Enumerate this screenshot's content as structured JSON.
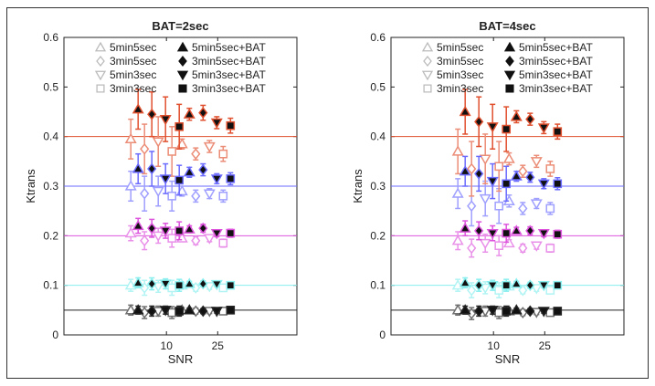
{
  "chart_data": [
    {
      "type": "scatter",
      "title": "BAT=2sec",
      "xlabel": "SNR",
      "ylabel": "Ktrans",
      "categories": [
        "10",
        "25"
      ],
      "ylim": [
        0,
        0.6
      ],
      "yticks": [
        "0",
        "0.1",
        "0.2",
        "0.3",
        "0.4",
        "0.5",
        "0.6"
      ],
      "reference_lines": [
        {
          "value": 0.4,
          "color": "#e0502e"
        },
        {
          "value": 0.3,
          "color": "#6b6bff"
        },
        {
          "value": 0.2,
          "color": "#dd55dd"
        },
        {
          "value": 0.1,
          "color": "#88eeee"
        },
        {
          "value": 0.05,
          "color": "#222222"
        }
      ],
      "series": [
        {
          "name": "5min5sec",
          "marker": "triangle-up",
          "filled": false,
          "values": {
            "10": {
              "0.05": [
                0.05,
                0.01
              ],
              "0.1": [
                0.1,
                0.012
              ],
              "0.2": [
                0.205,
                0.015
              ],
              "0.3": [
                0.3,
                0.03
              ],
              "0.4": [
                0.395,
                0.04
              ]
            },
            "25": {
              "0.05": [
                0.05,
                0.005
              ],
              "0.1": [
                0.1,
                0.006
              ],
              "0.2": [
                0.195,
                0.007
              ],
              "0.3": [
                0.29,
                0.01
              ],
              "0.4": [
                0.385,
                0.01
              ]
            }
          }
        },
        {
          "name": "3min5sec",
          "marker": "diamond",
          "filled": false,
          "values": {
            "10": {
              "0.05": [
                0.045,
                0.012
              ],
              "0.1": [
                0.095,
                0.015
              ],
              "0.2": [
                0.19,
                0.018
              ],
              "0.3": [
                0.285,
                0.035
              ],
              "0.4": [
                0.375,
                0.05
              ]
            },
            "25": {
              "0.05": [
                0.048,
                0.006
              ],
              "0.1": [
                0.095,
                0.007
              ],
              "0.2": [
                0.19,
                0.008
              ],
              "0.3": [
                0.28,
                0.012
              ],
              "0.4": [
                0.365,
                0.012
              ]
            }
          }
        },
        {
          "name": "5min3sec",
          "marker": "triangle-down",
          "filled": false,
          "values": {
            "10": {
              "0.05": [
                0.048,
                0.01
              ],
              "0.1": [
                0.098,
                0.012
              ],
              "0.2": [
                0.2,
                0.015
              ],
              "0.3": [
                0.29,
                0.03
              ],
              "0.4": [
                0.39,
                0.05
              ]
            },
            "25": {
              "0.05": [
                0.048,
                0.005
              ],
              "0.1": [
                0.098,
                0.006
              ],
              "0.2": [
                0.195,
                0.007
              ],
              "0.3": [
                0.285,
                0.01
              ],
              "0.4": [
                0.38,
                0.012
              ]
            }
          }
        },
        {
          "name": "3min3sec",
          "marker": "square",
          "filled": false,
          "values": {
            "10": {
              "0.05": [
                0.045,
                0.012
              ],
              "0.1": [
                0.095,
                0.015
              ],
              "0.2": [
                0.195,
                0.018
              ],
              "0.3": [
                0.28,
                0.03
              ],
              "0.4": [
                0.37,
                0.05
              ]
            },
            "25": {
              "0.05": [
                0.048,
                0.006
              ],
              "0.1": [
                0.095,
                0.007
              ],
              "0.2": [
                0.185,
                0.008
              ],
              "0.3": [
                0.28,
                0.012
              ],
              "0.4": [
                0.365,
                0.015
              ]
            }
          }
        },
        {
          "name": "5min5sec+BAT",
          "marker": "triangle-up",
          "filled": true,
          "values": {
            "10": {
              "0.05": [
                0.05,
                0.008
              ],
              "0.1": [
                0.105,
                0.01
              ],
              "0.2": [
                0.22,
                0.015
              ],
              "0.3": [
                0.335,
                0.03
              ],
              "0.4": [
                0.455,
                0.04
              ]
            },
            "25": {
              "0.05": [
                0.05,
                0.004
              ],
              "0.1": [
                0.103,
                0.005
              ],
              "0.2": [
                0.213,
                0.007
              ],
              "0.3": [
                0.328,
                0.01
              ],
              "0.4": [
                0.445,
                0.012
              ]
            }
          }
        },
        {
          "name": "3min5sec+BAT",
          "marker": "diamond",
          "filled": true,
          "values": {
            "10": {
              "0.05": [
                0.048,
                0.01
              ],
              "0.1": [
                0.103,
                0.012
              ],
              "0.2": [
                0.215,
                0.018
              ],
              "0.3": [
                0.335,
                0.035
              ],
              "0.4": [
                0.445,
                0.045
              ]
            },
            "25": {
              "0.05": [
                0.048,
                0.005
              ],
              "0.1": [
                0.103,
                0.006
              ],
              "0.2": [
                0.215,
                0.008
              ],
              "0.3": [
                0.333,
                0.012
              ],
              "0.4": [
                0.448,
                0.015
              ]
            }
          }
        },
        {
          "name": "5min3sec+BAT",
          "marker": "triangle-down",
          "filled": true,
          "values": {
            "10": {
              "0.05": [
                0.05,
                0.008
              ],
              "0.1": [
                0.103,
                0.01
              ],
              "0.2": [
                0.21,
                0.015
              ],
              "0.3": [
                0.315,
                0.03
              ],
              "0.4": [
                0.435,
                0.045
              ]
            },
            "25": {
              "0.05": [
                0.048,
                0.004
              ],
              "0.1": [
                0.102,
                0.005
              ],
              "0.2": [
                0.205,
                0.007
              ],
              "0.3": [
                0.315,
                0.01
              ],
              "0.4": [
                0.428,
                0.012
              ]
            }
          }
        },
        {
          "name": "3min3sec+BAT",
          "marker": "square",
          "filled": true,
          "values": {
            "10": {
              "0.05": [
                0.048,
                0.01
              ],
              "0.1": [
                0.1,
                0.012
              ],
              "0.2": [
                0.21,
                0.018
              ],
              "0.3": [
                0.312,
                0.03
              ],
              "0.4": [
                0.42,
                0.045
              ]
            },
            "25": {
              "0.05": [
                0.05,
                0.005
              ],
              "0.1": [
                0.1,
                0.006
              ],
              "0.2": [
                0.205,
                0.008
              ],
              "0.3": [
                0.315,
                0.012
              ],
              "0.4": [
                0.422,
                0.015
              ]
            }
          }
        }
      ]
    },
    {
      "type": "scatter",
      "title": "BAT=4sec",
      "xlabel": "SNR",
      "ylabel": "Ktrans",
      "categories": [
        "10",
        "25"
      ],
      "ylim": [
        0,
        0.6
      ],
      "yticks": [
        "0",
        "0.1",
        "0.2",
        "0.3",
        "0.4",
        "0.5",
        "0.6"
      ],
      "reference_lines": [
        {
          "value": 0.4,
          "color": "#e0502e"
        },
        {
          "value": 0.3,
          "color": "#6b6bff"
        },
        {
          "value": 0.2,
          "color": "#dd55dd"
        },
        {
          "value": 0.1,
          "color": "#88eeee"
        },
        {
          "value": 0.05,
          "color": "#222222"
        }
      ],
      "series": [
        {
          "name": "5min5sec",
          "marker": "triangle-up",
          "filled": false,
          "values": {
            "10": {
              "0.05": [
                0.05,
                0.01
              ],
              "0.1": [
                0.1,
                0.012
              ],
              "0.2": [
                0.19,
                0.018
              ],
              "0.3": [
                0.285,
                0.03
              ],
              "0.4": [
                0.37,
                0.045
              ]
            },
            "25": {
              "0.05": [
                0.048,
                0.005
              ],
              "0.1": [
                0.098,
                0.006
              ],
              "0.2": [
                0.185,
                0.007
              ],
              "0.3": [
                0.27,
                0.012
              ],
              "0.4": [
                0.355,
                0.012
              ]
            }
          }
        },
        {
          "name": "3min5sec",
          "marker": "diamond",
          "filled": false,
          "values": {
            "10": {
              "0.05": [
                0.043,
                0.012
              ],
              "0.1": [
                0.09,
                0.015
              ],
              "0.2": [
                0.175,
                0.018
              ],
              "0.3": [
                0.26,
                0.04
              ],
              "0.4": [
                0.335,
                0.055
              ]
            },
            "25": {
              "0.05": [
                0.045,
                0.006
              ],
              "0.1": [
                0.09,
                0.007
              ],
              "0.2": [
                0.175,
                0.008
              ],
              "0.3": [
                0.255,
                0.012
              ],
              "0.4": [
                0.33,
                0.012
              ]
            }
          }
        },
        {
          "name": "5min3sec",
          "marker": "triangle-down",
          "filled": false,
          "values": {
            "10": {
              "0.05": [
                0.048,
                0.01
              ],
              "0.1": [
                0.095,
                0.012
              ],
              "0.2": [
                0.185,
                0.018
              ],
              "0.3": [
                0.275,
                0.035
              ],
              "0.4": [
                0.355,
                0.05
              ]
            },
            "25": {
              "0.05": [
                0.046,
                0.005
              ],
              "0.1": [
                0.094,
                0.006
              ],
              "0.2": [
                0.18,
                0.007
              ],
              "0.3": [
                0.265,
                0.01
              ],
              "0.4": [
                0.35,
                0.012
              ]
            }
          }
        },
        {
          "name": "3min3sec",
          "marker": "square",
          "filled": false,
          "values": {
            "10": {
              "0.05": [
                0.045,
                0.012
              ],
              "0.1": [
                0.09,
                0.015
              ],
              "0.2": [
                0.18,
                0.02
              ],
              "0.3": [
                0.26,
                0.035
              ],
              "0.4": [
                0.34,
                0.05
              ]
            },
            "25": {
              "0.05": [
                0.045,
                0.006
              ],
              "0.1": [
                0.09,
                0.007
              ],
              "0.2": [
                0.175,
                0.008
              ],
              "0.3": [
                0.255,
                0.012
              ],
              "0.4": [
                0.335,
                0.015
              ]
            }
          }
        },
        {
          "name": "5min5sec+BAT",
          "marker": "triangle-up",
          "filled": true,
          "values": {
            "10": {
              "0.05": [
                0.05,
                0.008
              ],
              "0.1": [
                0.105,
                0.01
              ],
              "0.2": [
                0.215,
                0.015
              ],
              "0.3": [
                0.33,
                0.03
              ],
              "0.4": [
                0.45,
                0.045
              ]
            },
            "25": {
              "0.05": [
                0.05,
                0.004
              ],
              "0.1": [
                0.103,
                0.005
              ],
              "0.2": [
                0.21,
                0.007
              ],
              "0.3": [
                0.32,
                0.01
              ],
              "0.4": [
                0.44,
                0.012
              ]
            }
          }
        },
        {
          "name": "3min5sec+BAT",
          "marker": "diamond",
          "filled": true,
          "values": {
            "10": {
              "0.05": [
                0.048,
                0.01
              ],
              "0.1": [
                0.1,
                0.012
              ],
              "0.2": [
                0.21,
                0.018
              ],
              "0.3": [
                0.325,
                0.035
              ],
              "0.4": [
                0.43,
                0.05
              ]
            },
            "25": {
              "0.05": [
                0.048,
                0.005
              ],
              "0.1": [
                0.1,
                0.006
              ],
              "0.2": [
                0.21,
                0.008
              ],
              "0.3": [
                0.318,
                0.01
              ],
              "0.4": [
                0.435,
                0.012
              ]
            }
          }
        },
        {
          "name": "5min3sec+BAT",
          "marker": "triangle-down",
          "filled": true,
          "values": {
            "10": {
              "0.05": [
                0.05,
                0.008
              ],
              "0.1": [
                0.1,
                0.01
              ],
              "0.2": [
                0.205,
                0.015
              ],
              "0.3": [
                0.31,
                0.035
              ],
              "0.4": [
                0.42,
                0.045
              ]
            },
            "25": {
              "0.05": [
                0.048,
                0.004
              ],
              "0.1": [
                0.1,
                0.005
              ],
              "0.2": [
                0.205,
                0.007
              ],
              "0.3": [
                0.305,
                0.01
              ],
              "0.4": [
                0.418,
                0.012
              ]
            }
          }
        },
        {
          "name": "3min3sec+BAT",
          "marker": "square",
          "filled": true,
          "values": {
            "10": {
              "0.05": [
                0.048,
                0.01
              ],
              "0.1": [
                0.1,
                0.012
              ],
              "0.2": [
                0.205,
                0.018
              ],
              "0.3": [
                0.305,
                0.035
              ],
              "0.4": [
                0.415,
                0.045
              ]
            },
            "25": {
              "0.05": [
                0.048,
                0.005
              ],
              "0.1": [
                0.1,
                0.006
              ],
              "0.2": [
                0.203,
                0.008
              ],
              "0.3": [
                0.305,
                0.012
              ],
              "0.4": [
                0.41,
                0.015
              ]
            }
          }
        }
      ]
    }
  ]
}
